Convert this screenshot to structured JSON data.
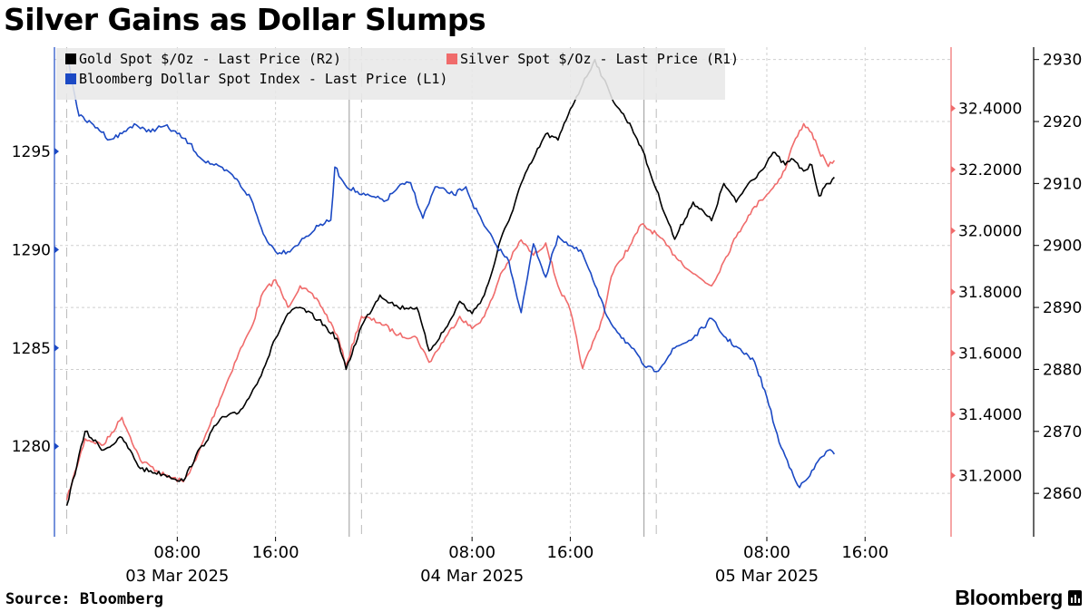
{
  "title": "Silver Gains as Dollar Slumps",
  "footer": {
    "source": "Source: Bloomberg",
    "brand": "Bloomberg",
    "brand_icon": "bloomberg-terminal-icon"
  },
  "chart_data": {
    "type": "line",
    "title": "Silver Gains as Dollar Slumps",
    "xlabel": "",
    "grid": true,
    "legend_placement": "top-left",
    "x_domain": [
      "2025-03-02T22:00",
      "2025-03-05T23:00"
    ],
    "x_ticks": [
      {
        "x": "2025-03-03T08:00",
        "label": "08:00",
        "date": "03 Mar 2025"
      },
      {
        "x": "2025-03-03T16:00",
        "label": "16:00"
      },
      {
        "x": "2025-03-04T08:00",
        "label": "08:00",
        "date": "04 Mar 2025"
      },
      {
        "x": "2025-03-04T16:00",
        "label": "16:00"
      },
      {
        "x": "2025-03-05T08:00",
        "label": "08:00",
        "date": "05 Mar 2025"
      },
      {
        "x": "2025-03-05T16:00",
        "label": "16:00"
      }
    ],
    "session_breaks": [
      "2025-03-02T23:00",
      "2025-03-03T22:00",
      "2025-03-03T23:00",
      "2025-03-04T22:00",
      "2025-03-04T23:00"
    ],
    "axes": {
      "L1": {
        "range": [
          1275.4,
          1300.3
        ],
        "ticks": [
          1280,
          1285,
          1290,
          1295
        ],
        "color": "#1b49c4"
      },
      "R1": {
        "range": [
          31.0,
          32.6
        ],
        "ticks": [
          31.2,
          31.4,
          31.6,
          31.8,
          32.0,
          32.2,
          32.4
        ],
        "tick_labels": [
          "31.2000",
          "31.4000",
          "31.6000",
          "31.8000",
          "32.0000",
          "32.2000",
          "32.4000"
        ],
        "color": "#f06b6b"
      },
      "R2": {
        "range": [
          2853,
          2932
        ],
        "ticks": [
          2860,
          2870,
          2880,
          2890,
          2900,
          2910,
          2920,
          2930
        ]
      }
    },
    "series": [
      {
        "name": "Gold Spot $/Oz - Last Price (R2)",
        "axis": "R2",
        "color": "#000000",
        "points": [
          [
            "2025-03-02T23:00",
            2858
          ],
          [
            "2025-03-03T00:30",
            2870
          ],
          [
            "2025-03-03T02:00",
            2867
          ],
          [
            "2025-03-03T03:30",
            2869
          ],
          [
            "2025-03-03T05:00",
            2864
          ],
          [
            "2025-03-03T07:00",
            2863
          ],
          [
            "2025-03-03T08:30",
            2862
          ],
          [
            "2025-03-03T09:30",
            2866
          ],
          [
            "2025-03-03T11:30",
            2872
          ],
          [
            "2025-03-03T13:00",
            2873
          ],
          [
            "2025-03-03T14:00",
            2876
          ],
          [
            "2025-03-03T15:00",
            2880
          ],
          [
            "2025-03-03T16:00",
            2885
          ],
          [
            "2025-03-03T17:00",
            2889
          ],
          [
            "2025-03-03T18:00",
            2890
          ],
          [
            "2025-03-03T19:30",
            2888
          ],
          [
            "2025-03-03T21:00",
            2885
          ],
          [
            "2025-03-03T21:45",
            2880
          ],
          [
            "2025-03-03T23:00",
            2887
          ],
          [
            "2025-03-04T00:30",
            2892
          ],
          [
            "2025-03-04T02:00",
            2890
          ],
          [
            "2025-03-04T03:30",
            2890
          ],
          [
            "2025-03-04T04:30",
            2883
          ],
          [
            "2025-03-04T06:00",
            2887
          ],
          [
            "2025-03-04T07:00",
            2891
          ],
          [
            "2025-03-04T08:00",
            2889
          ],
          [
            "2025-03-04T09:00",
            2892
          ],
          [
            "2025-03-04T09:40",
            2896
          ],
          [
            "2025-03-04T10:20",
            2901
          ],
          [
            "2025-03-04T11:00",
            2904
          ],
          [
            "2025-03-04T12:00",
            2910
          ],
          [
            "2025-03-04T13:00",
            2914
          ],
          [
            "2025-03-04T14:00",
            2918
          ],
          [
            "2025-03-04T15:00",
            2917
          ],
          [
            "2025-03-04T16:00",
            2922
          ],
          [
            "2025-03-04T17:00",
            2926
          ],
          [
            "2025-03-04T18:00",
            2930
          ],
          [
            "2025-03-04T18:40",
            2927
          ],
          [
            "2025-03-04T19:20",
            2924
          ],
          [
            "2025-03-04T20:00",
            2922
          ],
          [
            "2025-03-04T21:00",
            2919
          ],
          [
            "2025-03-04T21:45",
            2916
          ],
          [
            "2025-03-04T23:00",
            2909
          ],
          [
            "2025-03-05T00:30",
            2901
          ],
          [
            "2025-03-05T02:00",
            2907
          ],
          [
            "2025-03-05T03:30",
            2904
          ],
          [
            "2025-03-05T04:30",
            2910
          ],
          [
            "2025-03-05T05:30",
            2907
          ],
          [
            "2025-03-05T06:30",
            2910
          ],
          [
            "2025-03-05T07:30",
            2912
          ],
          [
            "2025-03-05T08:30",
            2915
          ],
          [
            "2025-03-05T09:30",
            2913
          ],
          [
            "2025-03-05T10:00",
            2914
          ],
          [
            "2025-03-05T11:00",
            2912
          ],
          [
            "2025-03-05T11:40",
            2913
          ],
          [
            "2025-03-05T12:15",
            2908
          ],
          [
            "2025-03-05T13:00",
            2910
          ],
          [
            "2025-03-05T13:30",
            2911
          ]
        ]
      },
      {
        "name": "Silver Spot $/Oz - Last Price (R1)",
        "axis": "R1",
        "color": "#f06b6b",
        "points": [
          [
            "2025-03-02T23:00",
            31.12
          ],
          [
            "2025-03-03T00:30",
            31.32
          ],
          [
            "2025-03-03T02:00",
            31.3
          ],
          [
            "2025-03-03T03:30",
            31.39
          ],
          [
            "2025-03-03T05:00",
            31.25
          ],
          [
            "2025-03-03T07:00",
            31.2
          ],
          [
            "2025-03-03T08:30",
            31.18
          ],
          [
            "2025-03-03T09:30",
            31.25
          ],
          [
            "2025-03-03T11:30",
            31.45
          ],
          [
            "2025-03-03T13:00",
            31.6
          ],
          [
            "2025-03-03T14:00",
            31.68
          ],
          [
            "2025-03-03T15:00",
            31.8
          ],
          [
            "2025-03-03T16:00",
            31.84
          ],
          [
            "2025-03-03T17:00",
            31.75
          ],
          [
            "2025-03-03T18:00",
            31.82
          ],
          [
            "2025-03-03T19:30",
            31.77
          ],
          [
            "2025-03-03T21:00",
            31.66
          ],
          [
            "2025-03-03T21:45",
            31.56
          ],
          [
            "2025-03-03T23:00",
            31.72
          ],
          [
            "2025-03-04T00:30",
            31.7
          ],
          [
            "2025-03-04T02:00",
            31.66
          ],
          [
            "2025-03-04T03:30",
            31.65
          ],
          [
            "2025-03-04T04:30",
            31.57
          ],
          [
            "2025-03-04T06:00",
            31.66
          ],
          [
            "2025-03-04T07:00",
            31.72
          ],
          [
            "2025-03-04T08:00",
            31.68
          ],
          [
            "2025-03-04T09:00",
            31.72
          ],
          [
            "2025-03-04T09:40",
            31.78
          ],
          [
            "2025-03-04T10:20",
            31.86
          ],
          [
            "2025-03-04T11:00",
            31.9
          ],
          [
            "2025-03-04T12:00",
            31.97
          ],
          [
            "2025-03-04T13:00",
            31.92
          ],
          [
            "2025-03-04T14:00",
            31.96
          ],
          [
            "2025-03-04T15:00",
            31.82
          ],
          [
            "2025-03-04T16:00",
            31.74
          ],
          [
            "2025-03-04T17:00",
            31.55
          ],
          [
            "2025-03-04T18:00",
            31.65
          ],
          [
            "2025-03-04T18:40",
            31.72
          ],
          [
            "2025-03-04T19:20",
            31.85
          ],
          [
            "2025-03-04T20:00",
            31.9
          ],
          [
            "2025-03-04T21:00",
            31.96
          ],
          [
            "2025-03-04T21:45",
            32.02
          ],
          [
            "2025-03-04T23:00",
            31.99
          ],
          [
            "2025-03-05T00:30",
            31.92
          ],
          [
            "2025-03-05T02:00",
            31.86
          ],
          [
            "2025-03-05T03:30",
            31.82
          ],
          [
            "2025-03-05T04:30",
            31.9
          ],
          [
            "2025-03-05T05:30",
            31.98
          ],
          [
            "2025-03-05T06:30",
            32.05
          ],
          [
            "2025-03-05T07:30",
            32.1
          ],
          [
            "2025-03-05T08:30",
            32.14
          ],
          [
            "2025-03-05T09:30",
            32.2
          ],
          [
            "2025-03-05T10:00",
            32.27
          ],
          [
            "2025-03-05T11:00",
            32.35
          ],
          [
            "2025-03-05T11:40",
            32.32
          ],
          [
            "2025-03-05T12:15",
            32.26
          ],
          [
            "2025-03-05T13:00",
            32.21
          ],
          [
            "2025-03-05T13:30",
            32.23
          ]
        ]
      },
      {
        "name": "Bloomberg Dollar Spot Index - Last Price (L1)",
        "axis": "L1",
        "color": "#1b49c4",
        "points": [
          [
            "2025-03-02T23:00",
            1300.0
          ],
          [
            "2025-03-03T00:00",
            1296.8
          ],
          [
            "2025-03-03T01:30",
            1296.2
          ],
          [
            "2025-03-03T02:30",
            1295.6
          ],
          [
            "2025-03-03T03:30",
            1295.9
          ],
          [
            "2025-03-03T04:30",
            1296.4
          ],
          [
            "2025-03-03T05:30",
            1296.0
          ],
          [
            "2025-03-03T07:00",
            1296.3
          ],
          [
            "2025-03-03T08:00",
            1295.9
          ],
          [
            "2025-03-03T09:00",
            1295.4
          ],
          [
            "2025-03-03T10:00",
            1294.6
          ],
          [
            "2025-03-03T11:00",
            1294.3
          ],
          [
            "2025-03-03T12:30",
            1293.8
          ],
          [
            "2025-03-03T14:00",
            1292.6
          ],
          [
            "2025-03-03T15:00",
            1290.8
          ],
          [
            "2025-03-03T16:00",
            1289.9
          ],
          [
            "2025-03-03T17:00",
            1289.9
          ],
          [
            "2025-03-03T18:00",
            1290.4
          ],
          [
            "2025-03-03T19:30",
            1291.2
          ],
          [
            "2025-03-03T20:30",
            1291.5
          ],
          [
            "2025-03-03T20:50",
            1294.2
          ],
          [
            "2025-03-03T21:40",
            1293.3
          ],
          [
            "2025-03-03T23:00",
            1292.8
          ],
          [
            "2025-03-04T01:00",
            1292.5
          ],
          [
            "2025-03-04T02:00",
            1293.2
          ],
          [
            "2025-03-04T03:00",
            1293.4
          ],
          [
            "2025-03-04T04:00",
            1291.6
          ],
          [
            "2025-03-04T05:00",
            1293.2
          ],
          [
            "2025-03-04T06:30",
            1292.8
          ],
          [
            "2025-03-04T07:30",
            1293.2
          ],
          [
            "2025-03-04T08:00",
            1292.4
          ],
          [
            "2025-03-04T09:00",
            1291.2
          ],
          [
            "2025-03-04T10:00",
            1290.2
          ],
          [
            "2025-03-04T11:00",
            1289.4
          ],
          [
            "2025-03-04T12:00",
            1286.8
          ],
          [
            "2025-03-04T13:00",
            1290.3
          ],
          [
            "2025-03-04T14:00",
            1288.6
          ],
          [
            "2025-03-04T15:00",
            1290.7
          ],
          [
            "2025-03-04T16:00",
            1290.2
          ],
          [
            "2025-03-04T17:00",
            1289.8
          ],
          [
            "2025-03-04T18:00",
            1288.2
          ],
          [
            "2025-03-04T19:00",
            1286.6
          ],
          [
            "2025-03-04T20:00",
            1285.7
          ],
          [
            "2025-03-04T21:00",
            1285.0
          ],
          [
            "2025-03-04T22:00",
            1284.1
          ],
          [
            "2025-03-04T23:00",
            1283.8
          ],
          [
            "2025-03-05T00:30",
            1285.0
          ],
          [
            "2025-03-05T02:00",
            1285.5
          ],
          [
            "2025-03-05T03:30",
            1286.5
          ],
          [
            "2025-03-05T04:30",
            1285.6
          ],
          [
            "2025-03-05T06:00",
            1284.8
          ],
          [
            "2025-03-05T07:00",
            1284.3
          ],
          [
            "2025-03-05T08:00",
            1282.5
          ],
          [
            "2025-03-05T09:00",
            1280.2
          ],
          [
            "2025-03-05T10:00",
            1278.8
          ],
          [
            "2025-03-05T10:40",
            1277.9
          ],
          [
            "2025-03-05T11:30",
            1278.5
          ],
          [
            "2025-03-05T12:20",
            1279.4
          ],
          [
            "2025-03-05T13:00",
            1279.8
          ],
          [
            "2025-03-05T13:30",
            1279.6
          ]
        ]
      }
    ]
  }
}
